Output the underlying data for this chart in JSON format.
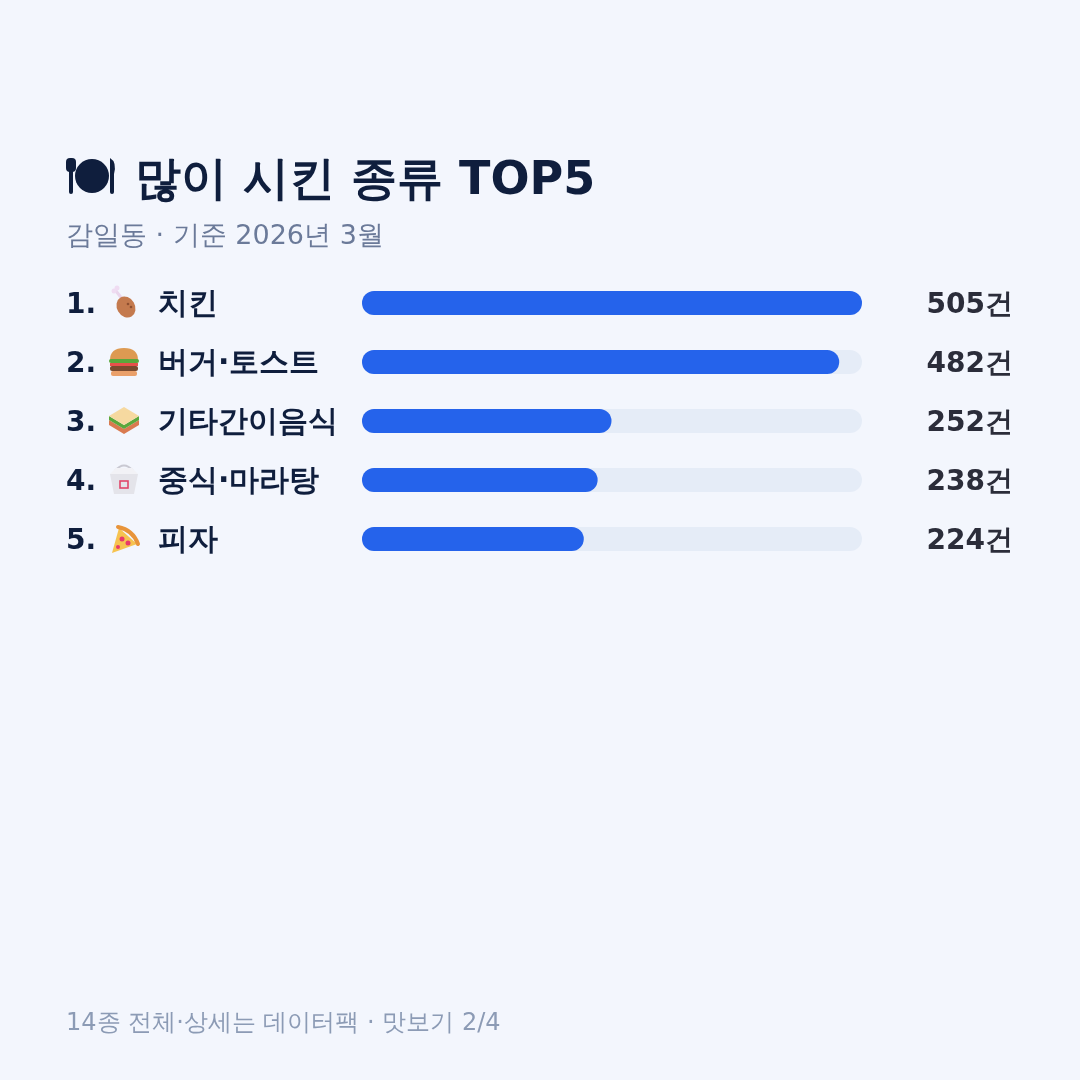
{
  "chart_data": {
    "type": "bar",
    "orientation": "horizontal",
    "title": "많이 시킨 종류 TOP5",
    "subtitle": "감일동 · 기준 2026년 3월",
    "categories": [
      "1. 치킨",
      "2. 버거·토스트",
      "3. 기타간이음식",
      "4. 중식·마라탕",
      "5. 피자"
    ],
    "values": [
      505,
      482,
      252,
      238,
      224
    ],
    "color": "#2563eb",
    "value_labels": [
      "505건",
      "482건",
      "252건",
      "238건",
      "224건"
    ],
    "annotations": [
      "14종 전체·상세는 데이터팩 · 맛보기 2/4"
    ]
  }
}
